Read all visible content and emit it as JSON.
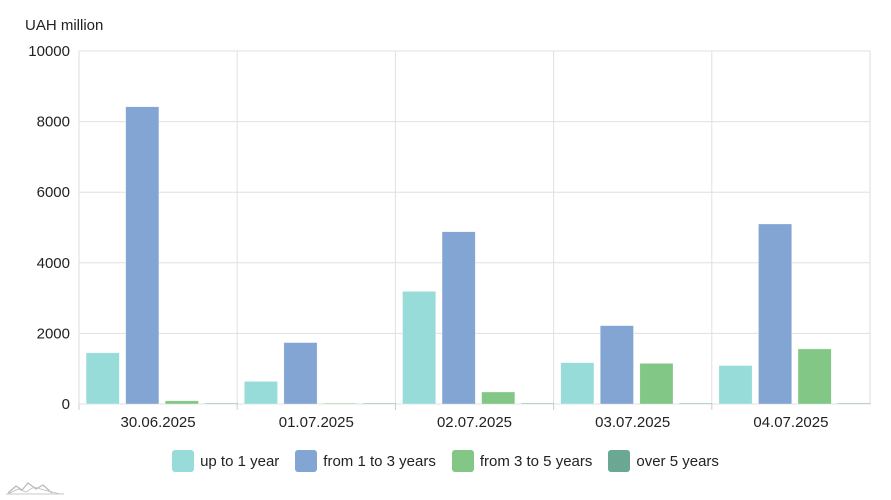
{
  "unit_label": "UAH million",
  "chart_data": {
    "type": "bar",
    "categories": [
      "30.06.2025",
      "01.07.2025",
      "02.07.2025",
      "03.07.2025",
      "04.07.2025"
    ],
    "ylabel": "UAH million",
    "ylim": [
      0,
      10000
    ],
    "yticks": [
      "0",
      "2000",
      "4000",
      "6000",
      "8000",
      "10000"
    ],
    "grid": true,
    "legend_position": "bottom",
    "series": [
      {
        "name": "up to 1 year",
        "color": "#98dcd9",
        "values": [
          1450,
          640,
          3190,
          1170,
          1090
        ]
      },
      {
        "name": "from 1 to 3 years",
        "color": "#82a5d4",
        "values": [
          8420,
          1740,
          4880,
          2220,
          5100
        ]
      },
      {
        "name": "from 3 to 5 years",
        "color": "#82c785",
        "values": [
          90,
          20,
          340,
          1150,
          1560
        ]
      },
      {
        "name": "over 5 years",
        "color": "#6aa894",
        "values": [
          0,
          0,
          0,
          0,
          0
        ]
      }
    ]
  }
}
